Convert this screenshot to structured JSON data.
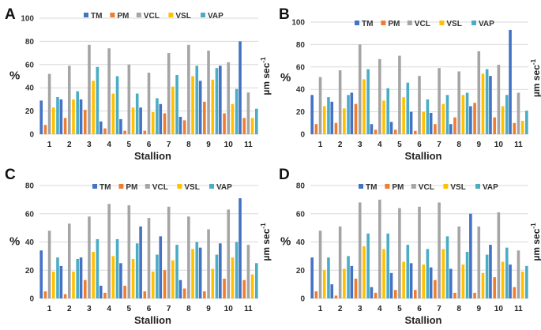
{
  "colors": {
    "TM": "#4472C4",
    "PM": "#ED7D31",
    "VCL": "#A5A5A5",
    "VSL": "#FFC000",
    "VAP": "#4BACC6"
  },
  "chart_data": [
    {
      "type": "bar",
      "panel_label": "A",
      "xlabel": "Stallion",
      "ylabel_left": "%",
      "ylabel_right": "µm sec",
      "ylabel_right_exp": "-1",
      "ylim": [
        0,
        100
      ],
      "yticks": [
        0,
        20,
        40,
        60,
        80,
        100
      ],
      "grid": true,
      "legend_position": "top",
      "categories": [
        "1",
        "2",
        "3",
        "4",
        "5",
        "6",
        "7",
        "8",
        "9",
        "10",
        "11"
      ],
      "series": [
        {
          "name": "TM",
          "values": [
            29,
            30,
            30,
            11,
            13,
            23,
            26,
            15,
            46,
            59,
            80
          ]
        },
        {
          "name": "PM",
          "values": [
            8,
            14,
            21,
            5,
            3,
            3,
            18,
            12,
            28,
            18,
            14
          ]
        },
        {
          "name": "VCL",
          "values": [
            52,
            59,
            77,
            74,
            60,
            53,
            70,
            77,
            72,
            62,
            36
          ]
        },
        {
          "name": "VSL",
          "values": [
            23,
            30,
            46,
            35,
            23,
            19,
            41,
            50,
            47,
            26,
            14
          ]
        },
        {
          "name": "VAP",
          "values": [
            32,
            37,
            58,
            50,
            35,
            31,
            51,
            59,
            57,
            39,
            22
          ]
        }
      ]
    },
    {
      "type": "bar",
      "panel_label": "B",
      "xlabel": "Stallion",
      "ylabel_left": "%",
      "ylabel_right": "µm sec",
      "ylabel_right_exp": "-1",
      "ylim": [
        0,
        100
      ],
      "yticks": [
        0,
        20,
        40,
        60,
        80,
        100
      ],
      "grid": true,
      "legend_position": "top",
      "categories": [
        "1",
        "2",
        "3",
        "4",
        "5",
        "6",
        "7",
        "8",
        "9",
        "10",
        "11"
      ],
      "series": [
        {
          "name": "TM",
          "values": [
            35,
            29,
            37,
            9,
            11,
            20,
            19,
            9,
            25,
            52,
            93
          ]
        },
        {
          "name": "PM",
          "values": [
            9,
            10,
            27,
            4,
            4,
            3,
            9,
            15,
            28,
            15,
            10
          ]
        },
        {
          "name": "VCL",
          "values": [
            51,
            57,
            80,
            67,
            70,
            52,
            59,
            56,
            74,
            62,
            37
          ]
        },
        {
          "name": "VSL",
          "values": [
            25,
            23,
            49,
            30,
            33,
            20,
            27,
            35,
            54,
            25,
            12
          ]
        },
        {
          "name": "VAP",
          "values": [
            33,
            35,
            58,
            41,
            46,
            31,
            35,
            37,
            58,
            35,
            21
          ]
        }
      ]
    },
    {
      "type": "bar",
      "panel_label": "C",
      "xlabel": "Stallion",
      "ylabel_left": "%",
      "ylabel_right": "µm sec",
      "ylabel_right_exp": "-1",
      "ylim": [
        0,
        80
      ],
      "yticks": [
        0,
        20,
        40,
        60,
        80
      ],
      "grid": true,
      "legend_position": "top",
      "categories": [
        "1",
        "2",
        "3",
        "4",
        "5",
        "6",
        "7",
        "8",
        "9",
        "10",
        "11"
      ],
      "series": [
        {
          "name": "TM",
          "values": [
            34,
            23,
            29,
            9,
            25,
            51,
            44,
            13,
            36,
            39,
            71
          ]
        },
        {
          "name": "PM",
          "values": [
            5,
            3,
            13,
            4,
            9,
            5,
            20,
            7,
            5,
            14,
            13
          ]
        },
        {
          "name": "VCL",
          "values": [
            48,
            53,
            58,
            67,
            66,
            57,
            65,
            58,
            49,
            63,
            38
          ]
        },
        {
          "name": "VSL",
          "values": [
            19,
            19,
            33,
            30,
            28,
            19,
            27,
            35,
            21,
            29,
            17
          ]
        },
        {
          "name": "VAP",
          "values": [
            29,
            28,
            42,
            42,
            39,
            31,
            38,
            40,
            31,
            40,
            25
          ]
        }
      ]
    },
    {
      "type": "bar",
      "panel_label": "D",
      "xlabel": "Stallion",
      "ylabel_left": "%",
      "ylabel_right": "µm sec",
      "ylabel_right_exp": "-1",
      "ylim": [
        0,
        80
      ],
      "yticks": [
        0,
        20,
        40,
        60,
        80
      ],
      "grid": true,
      "legend_position": "top",
      "categories": [
        "1",
        "2",
        "3",
        "4",
        "5",
        "6",
        "7",
        "8",
        "9",
        "10",
        "11"
      ],
      "series": [
        {
          "name": "TM",
          "values": [
            29,
            10,
            23,
            8,
            18,
            25,
            22,
            21,
            60,
            38,
            24
          ]
        },
        {
          "name": "PM",
          "values": [
            5,
            2,
            14,
            4,
            6,
            6,
            13,
            4,
            4,
            15,
            8
          ]
        },
        {
          "name": "VCL",
          "values": [
            48,
            51,
            68,
            70,
            64,
            65,
            68,
            51,
            51,
            61,
            34
          ]
        },
        {
          "name": "VSL",
          "values": [
            20,
            21,
            37,
            35,
            26,
            24,
            35,
            24,
            18,
            26,
            19
          ]
        },
        {
          "name": "VAP",
          "values": [
            29,
            30,
            46,
            46,
            38,
            35,
            44,
            33,
            31,
            36,
            23
          ]
        }
      ]
    }
  ]
}
